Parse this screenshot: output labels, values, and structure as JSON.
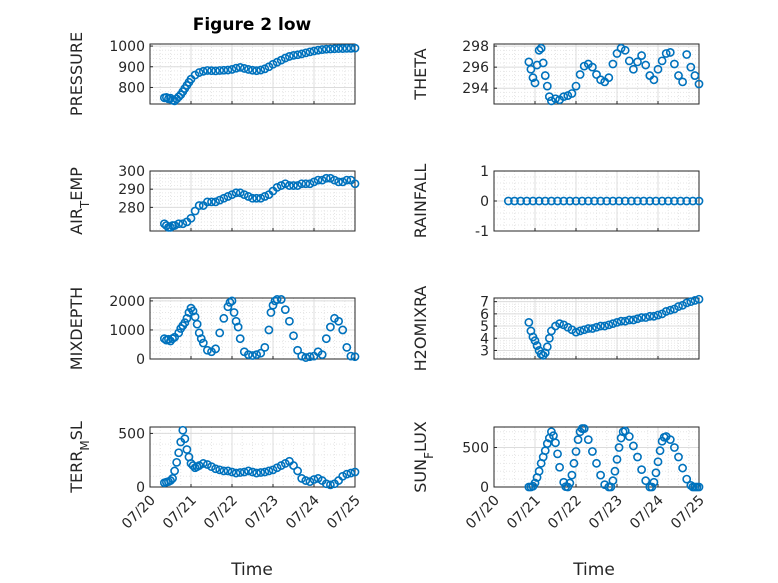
{
  "title": "Figure 2 low",
  "x_tick_labels": [
    "07/20",
    "07/21",
    "07/22",
    "07/23",
    "07/24",
    "07/25"
  ],
  "x_label": "Time",
  "marker_color": "#0072bd",
  "chart_data": [
    {
      "type": "scatter",
      "id": "pressure",
      "ylabel": "PRESSURE",
      "xlim": [
        0,
        5
      ],
      "ylim": [
        720,
        1010
      ],
      "yticks": [
        800,
        900,
        1000
      ],
      "grid": true,
      "marker": "circle",
      "x": [
        0.35,
        0.4,
        0.45,
        0.5,
        0.55,
        0.6,
        0.65,
        0.7,
        0.75,
        0.8,
        0.85,
        0.9,
        0.95,
        1.0,
        1.1,
        1.2,
        1.3,
        1.4,
        1.5,
        1.6,
        1.7,
        1.8,
        1.9,
        2.0,
        2.1,
        2.2,
        2.3,
        2.4,
        2.5,
        2.6,
        2.7,
        2.8,
        2.9,
        3.0,
        3.1,
        3.2,
        3.3,
        3.4,
        3.5,
        3.6,
        3.7,
        3.8,
        3.9,
        4.0,
        4.1,
        4.2,
        4.3,
        4.4,
        4.5,
        4.6,
        4.7,
        4.8,
        4.9,
        5.0
      ],
      "y": [
        750,
        752,
        745,
        748,
        738,
        735,
        745,
        755,
        765,
        780,
        795,
        810,
        825,
        840,
        860,
        872,
        878,
        882,
        881,
        880,
        882,
        883,
        884,
        887,
        893,
        897,
        892,
        887,
        883,
        881,
        884,
        890,
        900,
        912,
        922,
        932,
        942,
        950,
        955,
        958,
        962,
        967,
        972,
        976,
        980,
        983,
        985,
        986,
        987,
        988,
        988,
        989,
        989,
        990
      ]
    },
    {
      "type": "scatter",
      "id": "theta",
      "ylabel": "THETA",
      "xlim": [
        0,
        5
      ],
      "ylim": [
        292.5,
        298.2
      ],
      "yticks": [
        294,
        296,
        298
      ],
      "grid": true,
      "marker": "circle",
      "x": [
        0.85,
        0.9,
        0.95,
        1.0,
        1.05,
        1.1,
        1.15,
        1.2,
        1.25,
        1.3,
        1.35,
        1.4,
        1.5,
        1.6,
        1.7,
        1.8,
        1.9,
        2.0,
        2.1,
        2.2,
        2.3,
        2.4,
        2.5,
        2.6,
        2.7,
        2.8,
        2.9,
        3.0,
        3.1,
        3.2,
        3.3,
        3.4,
        3.5,
        3.6,
        3.7,
        3.8,
        3.9,
        4.0,
        4.1,
        4.2,
        4.3,
        4.4,
        4.5,
        4.6,
        4.7,
        4.8,
        4.9,
        5.0
      ],
      "y": [
        296.5,
        295.8,
        295.0,
        294.5,
        296.2,
        297.6,
        297.8,
        296.4,
        295.2,
        294.2,
        293.2,
        292.8,
        293.0,
        292.9,
        293.2,
        293.3,
        293.5,
        294.2,
        295.3,
        296.1,
        296.3,
        296.0,
        295.3,
        294.8,
        294.6,
        295.0,
        296.3,
        297.3,
        297.8,
        297.6,
        296.6,
        295.8,
        296.5,
        297.1,
        296.2,
        295.2,
        294.8,
        295.8,
        296.6,
        297.3,
        297.4,
        296.3,
        295.2,
        294.6,
        297.2,
        296.0,
        295.2,
        294.4
      ]
    },
    {
      "type": "scatter",
      "id": "air_temp",
      "ylabel": "AIR_TEMP",
      "xlim": [
        0,
        5
      ],
      "ylim": [
        267,
        300
      ],
      "yticks": [
        280,
        290,
        300
      ],
      "grid": true,
      "marker": "circle",
      "x": [
        0.35,
        0.4,
        0.45,
        0.5,
        0.55,
        0.6,
        0.7,
        0.8,
        0.9,
        1.0,
        1.1,
        1.2,
        1.3,
        1.4,
        1.5,
        1.6,
        1.7,
        1.8,
        1.9,
        2.0,
        2.1,
        2.2,
        2.3,
        2.4,
        2.5,
        2.6,
        2.7,
        2.8,
        2.9,
        3.0,
        3.1,
        3.2,
        3.3,
        3.4,
        3.5,
        3.6,
        3.7,
        3.8,
        3.9,
        4.0,
        4.1,
        4.2,
        4.3,
        4.4,
        4.5,
        4.6,
        4.7,
        4.8,
        4.9,
        5.0
      ],
      "y": [
        271,
        270,
        269,
        269,
        270,
        270,
        271,
        271,
        272,
        274,
        278,
        281,
        281,
        283,
        283,
        283,
        284,
        285,
        286,
        287,
        288,
        288,
        287,
        286,
        285,
        285,
        285,
        286,
        287,
        289,
        291,
        292,
        293,
        292,
        292,
        292,
        293,
        293,
        293,
        294,
        295,
        295,
        296,
        296,
        295,
        294,
        294,
        295,
        295,
        293
      ]
    },
    {
      "type": "scatter",
      "id": "rainfall",
      "ylabel": "RAINFALL",
      "xlim": [
        0,
        5
      ],
      "ylim": [
        -1,
        1
      ],
      "yticks": [
        -1,
        0,
        1
      ],
      "grid": true,
      "marker": "circle",
      "x": [
        0.35,
        0.5,
        0.65,
        0.8,
        0.95,
        1.1,
        1.25,
        1.4,
        1.55,
        1.7,
        1.85,
        2.0,
        2.15,
        2.3,
        2.45,
        2.6,
        2.75,
        2.9,
        3.05,
        3.2,
        3.35,
        3.5,
        3.65,
        3.8,
        3.95,
        4.1,
        4.25,
        4.4,
        4.55,
        4.7,
        4.85,
        5.0
      ],
      "y": [
        0,
        0,
        0,
        0,
        0,
        0,
        0,
        0,
        0,
        0,
        0,
        0,
        0,
        0,
        0,
        0,
        0,
        0,
        0,
        0,
        0,
        0,
        0,
        0,
        0,
        0,
        0,
        0,
        0,
        0,
        0,
        0
      ]
    },
    {
      "type": "scatter",
      "id": "mixdepth",
      "ylabel": "MIXDEPTH",
      "xlim": [
        0,
        5
      ],
      "ylim": [
        0,
        2100
      ],
      "yticks": [
        0,
        1000,
        2000
      ],
      "grid": true,
      "marker": "circle",
      "x": [
        0.35,
        0.4,
        0.45,
        0.5,
        0.55,
        0.6,
        0.7,
        0.75,
        0.8,
        0.85,
        0.9,
        0.95,
        1.0,
        1.05,
        1.1,
        1.15,
        1.2,
        1.25,
        1.3,
        1.4,
        1.5,
        1.6,
        1.7,
        1.8,
        1.9,
        1.95,
        2.0,
        2.05,
        2.1,
        2.15,
        2.2,
        2.3,
        2.4,
        2.5,
        2.6,
        2.7,
        2.8,
        2.9,
        2.95,
        3.0,
        3.05,
        3.1,
        3.2,
        3.3,
        3.4,
        3.5,
        3.6,
        3.7,
        3.8,
        3.9,
        4.0,
        4.1,
        4.2,
        4.3,
        4.4,
        4.5,
        4.6,
        4.7,
        4.8,
        4.9,
        5.0
      ],
      "y": [
        700,
        650,
        680,
        620,
        700,
        750,
        900,
        1050,
        1150,
        1250,
        1400,
        1600,
        1750,
        1650,
        1450,
        1200,
        900,
        700,
        550,
        300,
        250,
        350,
        900,
        1400,
        1800,
        1950,
        2000,
        1600,
        1300,
        1100,
        700,
        250,
        150,
        120,
        150,
        200,
        400,
        1000,
        1600,
        1850,
        2000,
        2050,
        2050,
        1700,
        1300,
        800,
        300,
        100,
        50,
        80,
        100,
        250,
        150,
        700,
        1100,
        1400,
        1300,
        1000,
        400,
        100,
        80
      ]
    },
    {
      "type": "scatter",
      "id": "h2omixra",
      "ylabel": "H2OMIXRA",
      "xlim": [
        0,
        5
      ],
      "ylim": [
        2.3,
        7.3
      ],
      "yticks": [
        3,
        4,
        5,
        6,
        7
      ],
      "grid": true,
      "marker": "circle",
      "x": [
        0.85,
        0.9,
        0.95,
        1.0,
        1.05,
        1.1,
        1.15,
        1.2,
        1.25,
        1.3,
        1.35,
        1.4,
        1.5,
        1.6,
        1.7,
        1.8,
        1.9,
        2.0,
        2.1,
        2.2,
        2.3,
        2.4,
        2.5,
        2.6,
        2.7,
        2.8,
        2.9,
        3.0,
        3.1,
        3.2,
        3.3,
        3.4,
        3.5,
        3.6,
        3.7,
        3.8,
        3.9,
        4.0,
        4.1,
        4.2,
        4.3,
        4.4,
        4.5,
        4.6,
        4.7,
        4.8,
        4.9,
        5.0
      ],
      "y": [
        5.3,
        4.6,
        4.1,
        3.8,
        3.4,
        3.0,
        2.7,
        2.6,
        2.8,
        3.3,
        4.0,
        4.6,
        5.0,
        5.2,
        5.1,
        4.9,
        4.7,
        4.5,
        4.6,
        4.7,
        4.8,
        4.8,
        4.9,
        5.0,
        5.0,
        5.1,
        5.2,
        5.3,
        5.4,
        5.4,
        5.5,
        5.5,
        5.6,
        5.7,
        5.7,
        5.8,
        5.8,
        5.9,
        6.0,
        6.2,
        6.3,
        6.4,
        6.6,
        6.7,
        6.9,
        7.0,
        7.1,
        7.2
      ]
    },
    {
      "type": "scatter",
      "id": "terr_msl",
      "ylabel": "TERR_MSL",
      "xlim": [
        0,
        5
      ],
      "ylim": [
        0,
        560
      ],
      "yticks": [
        0,
        500
      ],
      "grid": true,
      "marker": "circle",
      "x": [
        0.35,
        0.4,
        0.45,
        0.5,
        0.55,
        0.6,
        0.65,
        0.7,
        0.75,
        0.8,
        0.85,
        0.9,
        0.95,
        1.0,
        1.05,
        1.1,
        1.15,
        1.2,
        1.3,
        1.4,
        1.5,
        1.6,
        1.7,
        1.8,
        1.9,
        2.0,
        2.1,
        2.2,
        2.3,
        2.4,
        2.5,
        2.6,
        2.7,
        2.8,
        2.9,
        3.0,
        3.1,
        3.2,
        3.3,
        3.4,
        3.5,
        3.6,
        3.7,
        3.8,
        3.9,
        4.0,
        4.1,
        4.2,
        4.3,
        4.4,
        4.5,
        4.6,
        4.7,
        4.8,
        4.9,
        5.0
      ],
      "y": [
        40,
        45,
        50,
        60,
        80,
        150,
        230,
        320,
        420,
        530,
        450,
        350,
        280,
        220,
        200,
        180,
        190,
        200,
        220,
        210,
        190,
        170,
        160,
        150,
        150,
        140,
        130,
        135,
        140,
        150,
        140,
        130,
        135,
        140,
        150,
        160,
        180,
        200,
        220,
        240,
        200,
        150,
        80,
        60,
        50,
        70,
        80,
        60,
        30,
        20,
        30,
        60,
        100,
        120,
        130,
        140
      ]
    },
    {
      "type": "scatter",
      "id": "sun_flux",
      "ylabel": "SUN_FLUX",
      "xlim": [
        0,
        5
      ],
      "ylim": [
        0,
        760
      ],
      "yticks": [
        0,
        500
      ],
      "grid": true,
      "marker": "circle",
      "x": [
        0.85,
        0.9,
        0.95,
        1.0,
        1.05,
        1.1,
        1.15,
        1.2,
        1.25,
        1.3,
        1.35,
        1.4,
        1.45,
        1.5,
        1.55,
        1.6,
        1.7,
        1.75,
        1.8,
        1.85,
        1.9,
        1.95,
        2.0,
        2.05,
        2.1,
        2.15,
        2.2,
        2.3,
        2.4,
        2.5,
        2.6,
        2.7,
        2.8,
        2.85,
        2.9,
        2.95,
        3.0,
        3.05,
        3.1,
        3.15,
        3.2,
        3.3,
        3.4,
        3.5,
        3.6,
        3.7,
        3.8,
        3.85,
        3.9,
        3.95,
        4.0,
        4.05,
        4.1,
        4.15,
        4.2,
        4.3,
        4.4,
        4.5,
        4.6,
        4.7,
        4.8,
        4.85,
        4.9,
        4.95,
        5.0
      ],
      "y": [
        0,
        0,
        10,
        50,
        120,
        200,
        300,
        380,
        460,
        550,
        620,
        700,
        650,
        560,
        420,
        250,
        60,
        5,
        0,
        50,
        150,
        300,
        450,
        600,
        700,
        740,
        740,
        600,
        450,
        300,
        150,
        30,
        0,
        0,
        80,
        200,
        350,
        500,
        620,
        700,
        710,
        640,
        520,
        380,
        220,
        80,
        0,
        0,
        60,
        180,
        320,
        460,
        580,
        630,
        640,
        600,
        500,
        380,
        240,
        100,
        20,
        0,
        0,
        0,
        0
      ]
    }
  ]
}
